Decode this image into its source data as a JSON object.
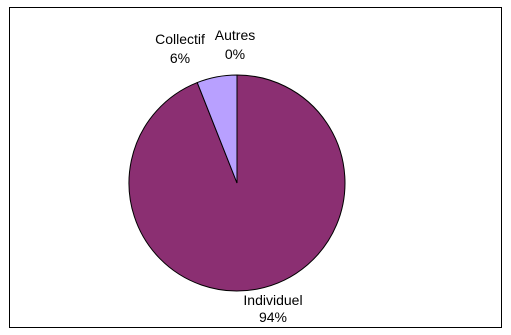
{
  "chart_data": {
    "type": "pie",
    "title": "",
    "slices": [
      {
        "label": "Individuel",
        "value": 94,
        "value_text": "94%",
        "color": "#8B2F72"
      },
      {
        "label": "Collectif",
        "value": 6,
        "value_text": "6%",
        "color": "#B8A0FF"
      },
      {
        "label": "Autres",
        "value": 0,
        "value_text": "0%",
        "color": "#FFFFE0"
      }
    ],
    "legend": "none",
    "start_angle_deg": 0,
    "direction": "clockwise"
  }
}
